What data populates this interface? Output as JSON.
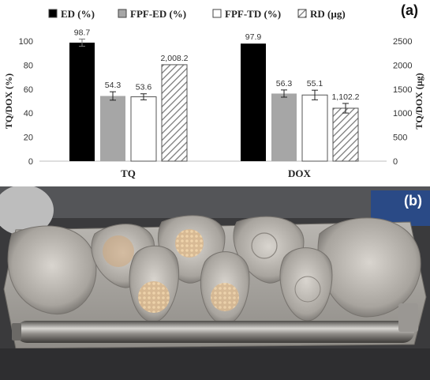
{
  "panel_a_label": "(a)",
  "panel_b_label": "(b)",
  "colors": {
    "ED": "#000000",
    "FPF-ED": "#a6a6a6",
    "FPF-TD": "#ffffff",
    "RD": "hatched"
  },
  "chart_data": {
    "type": "bar",
    "categories": [
      "TQ",
      "DOX"
    ],
    "series": [
      {
        "name": "ED (%)",
        "axis": "left",
        "values": [
          98.7,
          97.9
        ],
        "labels": [
          "98.7",
          "97.9"
        ],
        "errors": [
          3.0,
          0
        ]
      },
      {
        "name": "FPF-ED (%)",
        "axis": "left",
        "values": [
          54.3,
          56.3
        ],
        "labels": [
          "54.3",
          "56.3"
        ],
        "errors": [
          3.5,
          3.0
        ]
      },
      {
        "name": "FPF-TD (%)",
        "axis": "left",
        "values": [
          53.6,
          55.1
        ],
        "labels": [
          "53.6",
          "55.1"
        ],
        "errors": [
          2.5,
          4.0
        ]
      },
      {
        "name": "RD (µg)",
        "axis": "right",
        "values": [
          2008.2,
          1102.2
        ],
        "labels": [
          "2,008.2",
          "1,102.2"
        ],
        "errors": [
          0,
          100
        ]
      }
    ],
    "ylabel_left": "TQ/DOX (%)",
    "ylim_left": [
      0,
      100
    ],
    "yticks_left": [
      "0",
      "20",
      "40",
      "60",
      "80",
      "100"
    ],
    "ylabel_right": "TQ/DOX (µg)",
    "ylim_right": [
      0,
      2500
    ],
    "yticks_right": [
      "0",
      "500",
      "1000",
      "1500",
      "2000",
      "2500"
    ],
    "legend_position": "top",
    "grid": false
  }
}
